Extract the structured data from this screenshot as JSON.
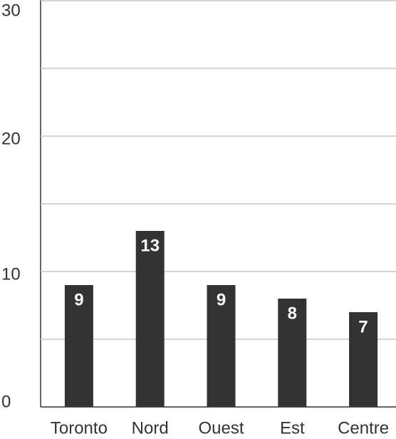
{
  "chart_data": {
    "type": "bar",
    "categories": [
      "Toronto",
      "Nord",
      "Ouest",
      "Est",
      "Centre"
    ],
    "values": [
      9,
      13,
      9,
      8,
      7
    ],
    "color": "#333333",
    "ylim": [
      0,
      30
    ],
    "yticks": [
      0,
      10,
      20,
      30
    ],
    "minor_yticks": [
      5,
      15,
      25
    ],
    "grid": true
  }
}
